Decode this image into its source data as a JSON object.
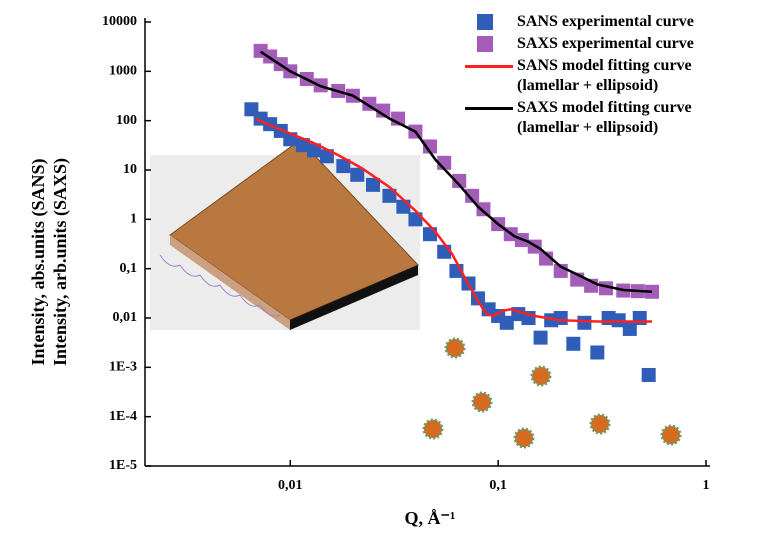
{
  "chart_data": {
    "type": "scatter-line",
    "x_label": "Q, Å⁻¹",
    "y_label": [
      "Intensity, abs.units (SANS)",
      "Intensity, arb.units (SAXS)"
    ],
    "xscale": "log",
    "yscale": "log",
    "xlim": [
      0.002,
      1
    ],
    "xticks": [
      {
        "value": 0.01,
        "label": "0,01"
      },
      {
        "value": 0.1,
        "label": "0,1"
      },
      1
    ],
    "ylim": [
      1e-05,
      10000
    ],
    "yticks": [
      {
        "value": 1e-05,
        "label": "1E-5"
      },
      {
        "value": 0.0001,
        "label": "1E-4"
      },
      {
        "value": 0.001,
        "label": "1E-3"
      },
      {
        "value": 0.01,
        "label": "0,01"
      },
      {
        "value": 0.1,
        "label": "0,1"
      },
      1,
      10,
      100,
      1000,
      10000
    ],
    "legend": "top-right",
    "series": [
      {
        "name": "SANS experimental curve",
        "kind": "scatter",
        "color": "#2f5db8",
        "x": [
          0.0065,
          0.0072,
          0.008,
          0.009,
          0.01,
          0.0115,
          0.013,
          0.015,
          0.018,
          0.021,
          0.025,
          0.03,
          0.035,
          0.04,
          0.047,
          0.055,
          0.063,
          0.072,
          0.08,
          0.09,
          0.1,
          0.11,
          0.125,
          0.14,
          0.16,
          0.18,
          0.2,
          0.23,
          0.26,
          0.3,
          0.34,
          0.38,
          0.43,
          0.48,
          0.53
        ],
        "values": [
          170,
          110,
          85,
          62,
          42,
          32,
          25,
          19,
          12,
          8,
          5,
          3,
          1.8,
          1,
          0.5,
          0.22,
          0.09,
          0.05,
          0.025,
          0.015,
          0.011,
          0.008,
          0.012,
          0.01,
          0.004,
          0.009,
          0.01,
          0.003,
          0.008,
          0.002,
          0.01,
          0.009,
          0.006,
          0.01,
          0.0007
        ]
      },
      {
        "name": "SAXS experimental curve",
        "kind": "scatter",
        "color": "#a35cb8",
        "x": [
          0.0072,
          0.008,
          0.009,
          0.01,
          0.012,
          0.014,
          0.017,
          0.02,
          0.024,
          0.028,
          0.033,
          0.04,
          0.047,
          0.055,
          0.065,
          0.075,
          0.085,
          0.1,
          0.115,
          0.13,
          0.15,
          0.17,
          0.2,
          0.24,
          0.28,
          0.33,
          0.4,
          0.47,
          0.55
        ],
        "values": [
          2600,
          2000,
          1400,
          1000,
          700,
          520,
          400,
          320,
          220,
          160,
          110,
          60,
          30,
          14,
          6,
          3,
          1.6,
          0.8,
          0.5,
          0.38,
          0.28,
          0.16,
          0.09,
          0.06,
          0.045,
          0.04,
          0.036,
          0.035,
          0.034
        ]
      },
      {
        "name": "SANS model fitting curve (lamellar + ellipsoid)",
        "kind": "line",
        "color": "#ff2020",
        "x": [
          0.0068,
          0.008,
          0.01,
          0.013,
          0.017,
          0.022,
          0.03,
          0.04,
          0.05,
          0.06,
          0.07,
          0.08,
          0.088,
          0.095,
          0.105,
          0.115,
          0.13,
          0.15,
          0.2,
          0.3,
          0.4,
          0.55
        ],
        "values": [
          110,
          80,
          55,
          35,
          20,
          11,
          4.5,
          1.5,
          0.55,
          0.2,
          0.06,
          0.022,
          0.012,
          0.011,
          0.014,
          0.015,
          0.013,
          0.011,
          0.009,
          0.0085,
          0.0085,
          0.0085
        ]
      },
      {
        "name": "SAXS model fitting curve (lamellar + ellipsoid)",
        "kind": "line",
        "color": "#000000",
        "x": [
          0.0072,
          0.01,
          0.014,
          0.02,
          0.03,
          0.04,
          0.05,
          0.065,
          0.08,
          0.1,
          0.12,
          0.14,
          0.16,
          0.2,
          0.25,
          0.3,
          0.4,
          0.55
        ],
        "values": [
          2500,
          1000,
          500,
          320,
          110,
          60,
          16,
          5,
          1.8,
          0.8,
          0.45,
          0.35,
          0.25,
          0.11,
          0.07,
          0.048,
          0.037,
          0.034
        ]
      }
    ]
  }
}
